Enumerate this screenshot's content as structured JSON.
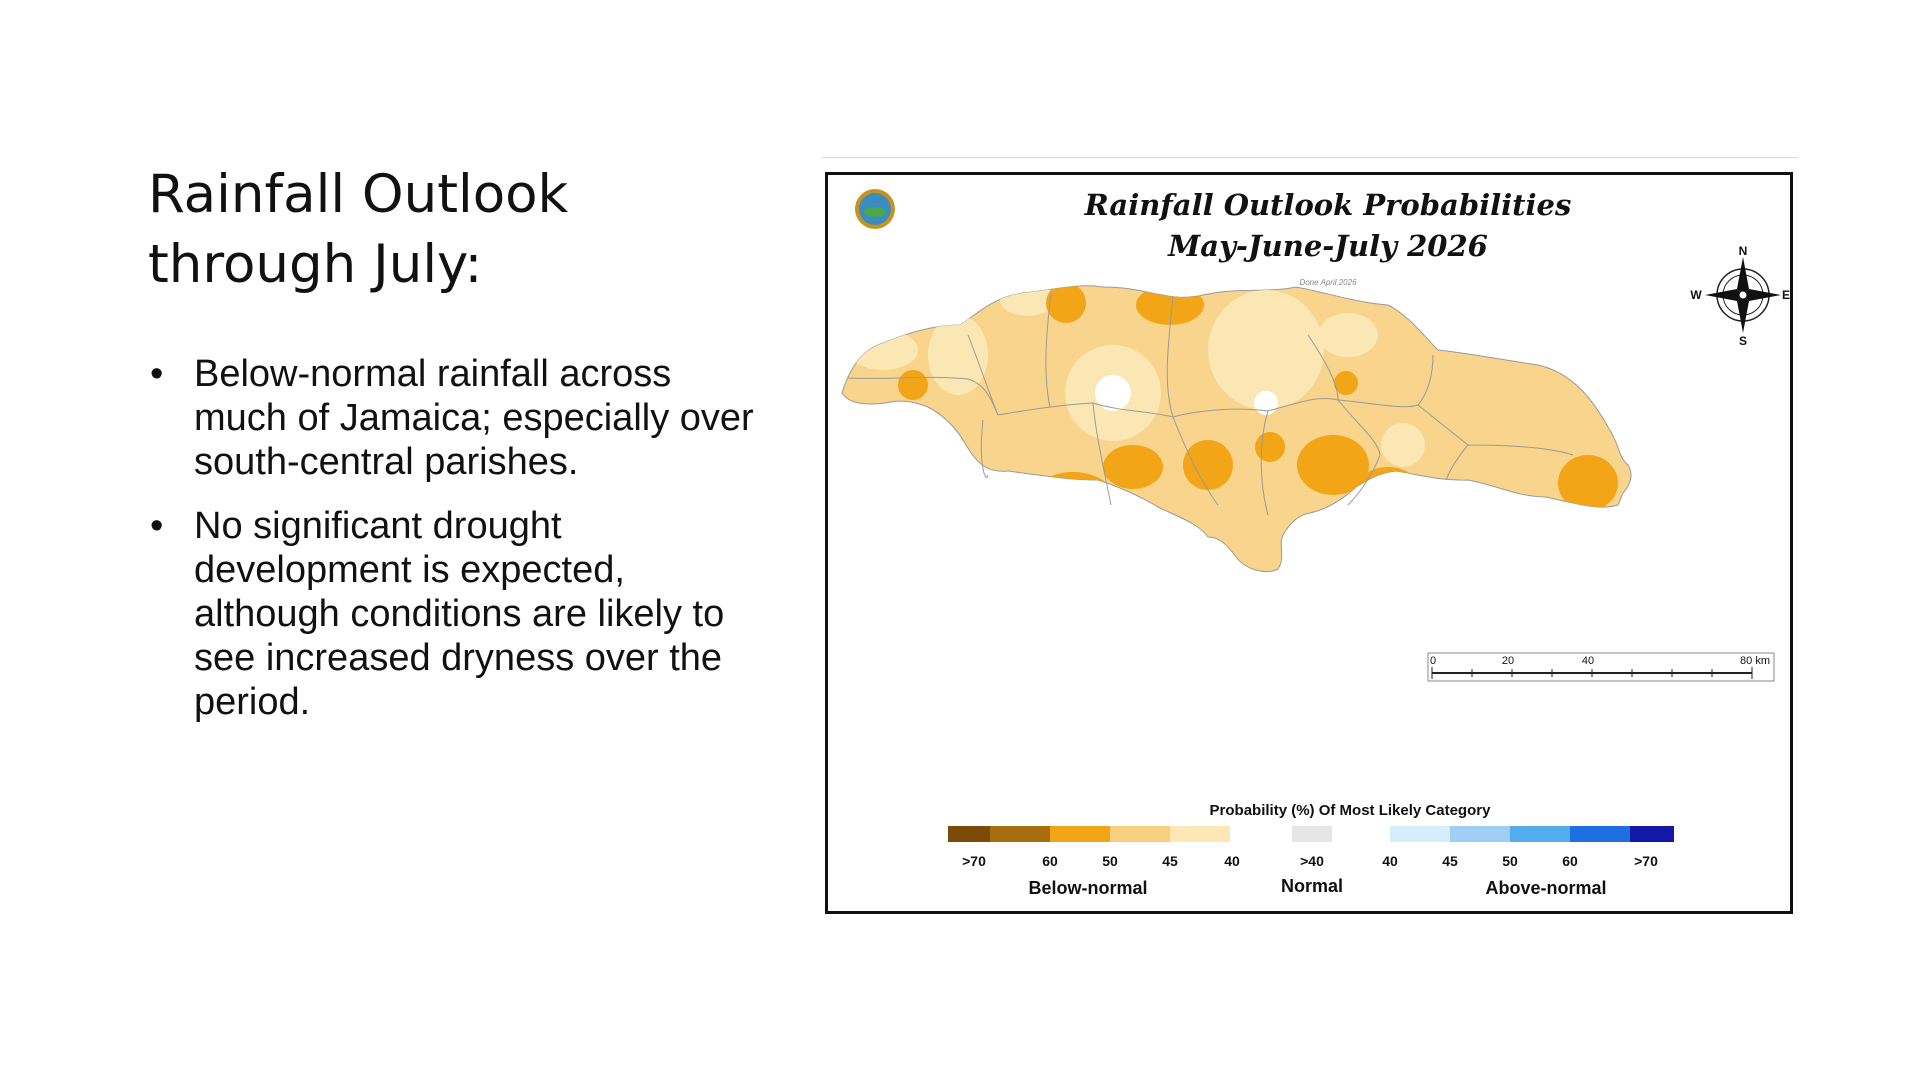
{
  "slide": {
    "title_line1": "Rainfall Outlook",
    "title_line2": "through July:",
    "bullets": [
      "Below-normal rainfall across much of Jamaica; especially over south-central parishes.",
      "No significant drought development is expected, although conditions are likely to see increased dryness over the period."
    ],
    "bullet_char": "•"
  },
  "map": {
    "title_line1": "Rainfall Outlook Probabilities",
    "title_line2": "May-June-July 2026",
    "note": "Done April 2026",
    "compass": {
      "n": "N",
      "s": "S",
      "e": "E",
      "w": "W"
    },
    "scale_bar": {
      "labels": [
        "0",
        "20",
        "40",
        "80 km"
      ]
    },
    "legend": {
      "title": "Probability (%) Of Most Likely Category",
      "below_label": "Below-normal",
      "normal_label": "Normal",
      "above_label": "Above-normal",
      "below_ticks": [
        ">70",
        "60",
        "50",
        "45",
        "40"
      ],
      "normal_tick": ">40",
      "above_ticks": [
        "40",
        "45",
        "50",
        "60",
        ">70"
      ],
      "below_colors": [
        "#7a4a06",
        "#a86d0c",
        "#f2a516",
        "#f7cf7f",
        "#fbe7b4"
      ],
      "normal_color": "#e6e6e6",
      "above_colors": [
        "#d6ecfb",
        "#9fd0f4",
        "#55acec",
        "#1f6fe3",
        "#1219a8"
      ]
    }
  }
}
